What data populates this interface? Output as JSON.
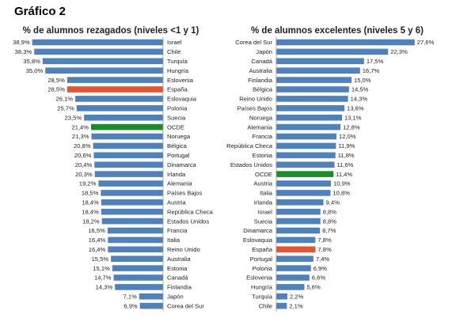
{
  "page_title": "Gráfico 2",
  "colors": {
    "default": "#4f81bd",
    "spain": "#e8522e",
    "oecd": "#1a8c2a"
  },
  "chart_data": [
    {
      "type": "bar",
      "orientation": "horizontal",
      "title": "% de alumnos rezagados (niveles <1 y 1)",
      "xlim": [
        0,
        40
      ],
      "categories": [
        "Israel",
        "Chile",
        "Turquía",
        "Hungría",
        "Eslovenia",
        "España",
        "Eslovaquia",
        "Polonia",
        "Suecia",
        "OCDE",
        "Noruega",
        "Bélgica",
        "Portugal",
        "Dinamarca",
        "Irlanda",
        "Alemania",
        "Países Bajos",
        "Austria",
        "República Checa",
        "Estados Unidos",
        "Francia",
        "Italia",
        "Reino Unido",
        "Australia",
        "Estonia",
        "Canadá",
        "Finlandia",
        "Japón",
        "Corea del Sur"
      ],
      "values": [
        38.9,
        38.3,
        35.8,
        35.0,
        28.5,
        28.5,
        26.1,
        25.7,
        23.5,
        21.4,
        21.3,
        20.8,
        20.6,
        20.4,
        20.3,
        19.2,
        18.5,
        18.4,
        18.4,
        18.2,
        16.5,
        16.4,
        16.4,
        15.5,
        15.1,
        14.7,
        14.3,
        7.1,
        6.9
      ],
      "value_labels": [
        "38,9%",
        "38,3%",
        "35,8%",
        "35,0%",
        "28,5%",
        "28,5%",
        "26,1%",
        "25,7%",
        "23,5%",
        "21,4%",
        "21,3%",
        "20,8%",
        "20,6%",
        "20,4%",
        "20,3%",
        "19,2%",
        "18,5%",
        "18,4%",
        "18,4%",
        "18,2%",
        "16,5%",
        "16,4%",
        "16,4%",
        "15,5%",
        "15,1%",
        "14,7%",
        "14,3%",
        "7,1%",
        "6,9%"
      ]
    },
    {
      "type": "bar",
      "orientation": "horizontal",
      "title": "% de alumnos excelentes (niveles 5 y 6)",
      "xlim": [
        0,
        30
      ],
      "categories": [
        "Corea del Sur",
        "Japón",
        "Canadá",
        "Australia",
        "Finlandia",
        "Bélgica",
        "Reino Unido",
        "Países Bajos",
        "Noruega",
        "Alemania",
        "Francia",
        "República Checa",
        "Estonia",
        "Estados Unidos",
        "OCDE",
        "Austria",
        "Italia",
        "Irlanda",
        "Israel",
        "Suecia",
        "Dinamarca",
        "Eslovaquia",
        "España",
        "Portugal",
        "Polonia",
        "Eslovenia",
        "Hungría",
        "Turquía",
        "Chile"
      ],
      "values": [
        27.6,
        22.3,
        17.5,
        16.7,
        15.0,
        14.5,
        14.3,
        13.6,
        13.1,
        12.8,
        12.0,
        11.9,
        11.8,
        11.6,
        11.4,
        10.9,
        10.8,
        9.4,
        8.8,
        8.8,
        8.7,
        7.8,
        7.8,
        7.4,
        6.9,
        6.6,
        5.6,
        2.2,
        2.1
      ],
      "value_labels": [
        "27,6%",
        "22,3%",
        "17,5%",
        "16,7%",
        "15,0%",
        "14,5%",
        "14,3%",
        "13,6%",
        "13,1%",
        "12,8%",
        "12,0%",
        "11,9%",
        "11,8%",
        "11,6%",
        "11,4%",
        "10,9%",
        "10,8%",
        "9,4%",
        "8,8%",
        "8,8%",
        "8,7%",
        "7,8%",
        "7,8%",
        "7,4%",
        "6,9%",
        "6,6%",
        "5,6%",
        "2,2%",
        "2,1%"
      ]
    }
  ]
}
